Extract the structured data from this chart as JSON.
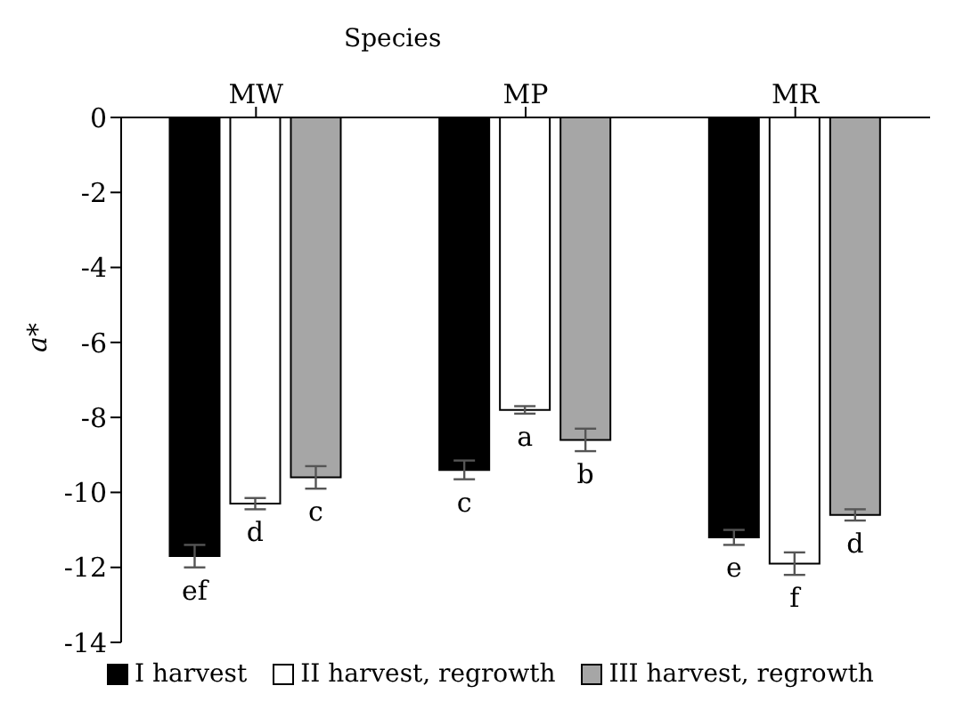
{
  "chart_data": {
    "type": "bar",
    "xlabel": "Species",
    "ylabel": "a*",
    "categories": [
      "MW",
      "MP",
      "MR"
    ],
    "series": [
      {
        "name": "I harvest",
        "color": "#000000",
        "values": [
          -11.7,
          -9.4,
          -11.2
        ],
        "errors": [
          0.3,
          0.25,
          0.2
        ],
        "value_labels": [
          "ef",
          "c",
          "e"
        ]
      },
      {
        "name": "II harvest, regrowth",
        "color": "#ffffff",
        "values": [
          -10.3,
          -7.8,
          -11.9
        ],
        "errors": [
          0.15,
          0.1,
          0.3
        ],
        "value_labels": [
          "d",
          "a",
          "f"
        ]
      },
      {
        "name": "III harvest, regrowth",
        "color": "#a6a6a6",
        "values": [
          -9.6,
          -8.6,
          -10.6
        ],
        "errors": [
          0.3,
          0.3,
          0.15
        ],
        "value_labels": [
          "c",
          "b",
          "d"
        ]
      }
    ],
    "ylim": [
      -14,
      0
    ],
    "yticks": [
      0,
      -2,
      -4,
      -6,
      -8,
      -10,
      -12,
      -14
    ],
    "grid": false,
    "legend": "bottom"
  }
}
